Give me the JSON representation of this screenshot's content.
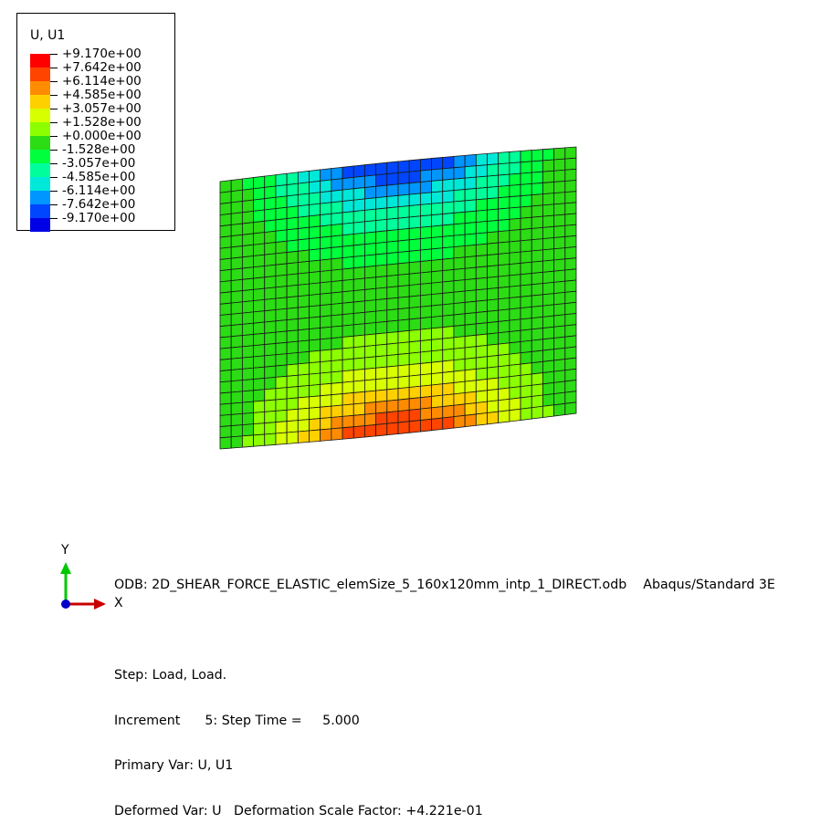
{
  "legend": {
    "title": "U, U1",
    "values": [
      "+9.170e+00",
      "+7.642e+00",
      "+6.114e+00",
      "+4.585e+00",
      "+3.057e+00",
      "+1.528e+00",
      "+0.000e+00",
      "-1.528e+00",
      "-3.057e+00",
      "-4.585e+00",
      "-6.114e+00",
      "-7.642e+00",
      "-9.170e+00"
    ],
    "colors": [
      "#ff0000",
      "#ff4400",
      "#ff8c00",
      "#ffd000",
      "#d8ff00",
      "#8cff00",
      "#2cdc14",
      "#00ff3c",
      "#00ff9a",
      "#00e8d8",
      "#0096ff",
      "#0046ff",
      "#0000e6"
    ]
  },
  "info": {
    "odb_line": "ODB: 2D_SHEAR_FORCE_ELASTIC_elemSize_5_160x120mm_intp_1_DIRECT.odb    Abaqus/Standard 3E",
    "step_line": "Step: Load, Load.",
    "increment_line": "Increment      5: Step Time =     5.000",
    "primary_line": "Primary Var: U, U1",
    "deformed_line": "Deformed Var: U   Deformation Scale Factor: +4.221e-01"
  },
  "triad": {
    "y_label": "Y",
    "x_label": "X",
    "y_color": "#00c800",
    "x_color": "#c80000",
    "origin_color": "#0000c8"
  },
  "mesh": {
    "columns": 32,
    "rows": 24,
    "line_color": "#1a1a1a"
  }
}
